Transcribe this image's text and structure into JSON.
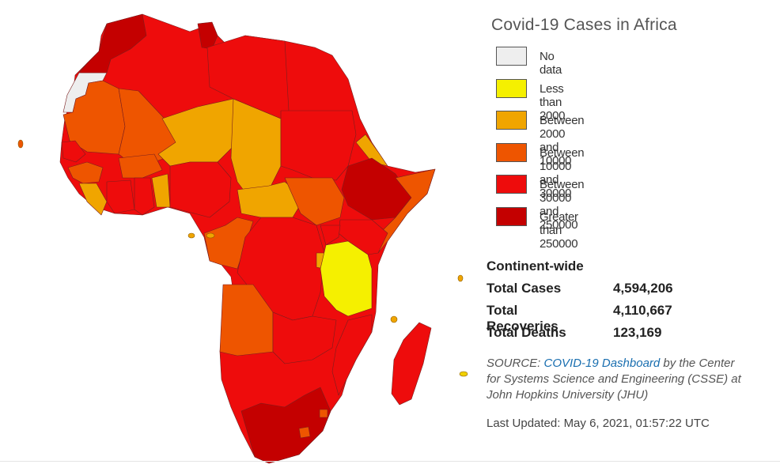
{
  "legend": {
    "title": "Covid-19 Cases in Africa",
    "items": [
      {
        "label": "No data",
        "color": "#eeeeee"
      },
      {
        "label": "Less than 2000",
        "color": "#f5f000"
      },
      {
        "label": "Between 2000 and 10000",
        "color": "#f0a500"
      },
      {
        "label": "Between 10000 and 30000",
        "color": "#ee5500"
      },
      {
        "label": "Between 30000 and 250000",
        "color": "#ee0c0c"
      },
      {
        "label": "Greater than 250000",
        "color": "#c40000"
      }
    ]
  },
  "stats": {
    "heading": "Continent-wide",
    "rows": [
      {
        "label": "Total Cases",
        "value": "4,594,206"
      },
      {
        "label": "Total Recoveries",
        "value": "4,110,667"
      },
      {
        "label": "Total Deaths",
        "value": "123,169"
      }
    ]
  },
  "source": {
    "prefix": "SOURCE: ",
    "link_text": "COVID-19 Dashboard",
    "suffix": " by the Center for Systems Science and Engineering (CSSE) at John Hopkins University (JHU)"
  },
  "updated": "Last Updated: May 6, 2021, 01:57:22 UTC"
}
